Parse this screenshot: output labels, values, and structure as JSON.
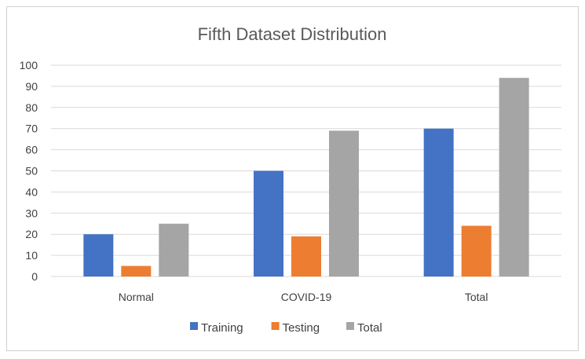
{
  "chart_data": {
    "type": "bar",
    "title": "Fifth Dataset Distribution",
    "xlabel": "",
    "ylabel": "",
    "categories": [
      "Normal",
      "COVID-19",
      "Total"
    ],
    "series": [
      {
        "name": "Training",
        "color": "#4472c4",
        "values": [
          20,
          50,
          70
        ]
      },
      {
        "name": "Testing",
        "color": "#ed7d31",
        "values": [
          5,
          19,
          24
        ]
      },
      {
        "name": "Total",
        "color": "#a5a5a5",
        "values": [
          25,
          69,
          94
        ]
      }
    ],
    "ylim": [
      0,
      100
    ],
    "yticks": [
      0,
      10,
      20,
      30,
      40,
      50,
      60,
      70,
      80,
      90,
      100
    ],
    "grid": true,
    "legend_position": "bottom"
  }
}
